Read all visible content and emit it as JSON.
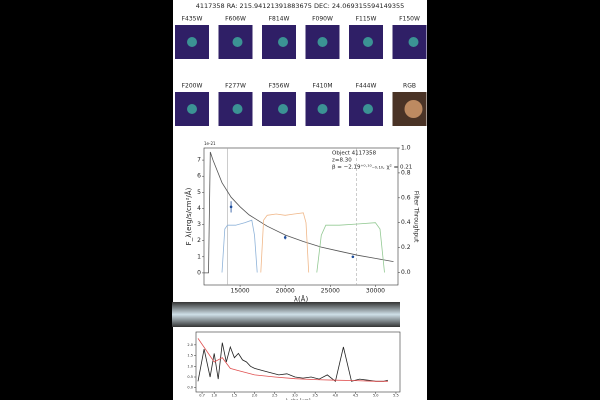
{
  "header": {
    "title": "4117358 RA: 215.94121391883675 DEC: 24.069315594149355"
  },
  "thumbnails": {
    "row1": [
      "F435W",
      "F606W",
      "F814W",
      "F090W",
      "F115W",
      "F150W"
    ],
    "row2": [
      "F200W",
      "F277W",
      "F356W",
      "F410M",
      "F444W",
      "RGB"
    ]
  },
  "chart_data": [
    {
      "type": "line",
      "ylabel": "F_λ(erg/s/cm²/Å)",
      "y2label": "Filter Throughput",
      "xlabel": "λ(Å)",
      "offset_label": "1e-21",
      "annotation": [
        "Object 4117358",
        "z=8.30",
        "β = −2.19⁺⁰·¹⁰₋₀.₁₀, χ² = 0.21"
      ],
      "xlim": [
        11000,
        32500
      ],
      "ylim": [
        -0.75,
        7.75
      ],
      "y2lim": [
        -0.1,
        1.0
      ],
      "xticks": [
        15000,
        20000,
        25000,
        30000
      ],
      "yticks": [
        0,
        1,
        2,
        3,
        4,
        5,
        6,
        7
      ],
      "y2ticks": [
        {
          "value": 0,
          "label": "0.0"
        },
        0.2,
        0.4,
        0.6,
        0.8,
        {
          "value": 1,
          "label": "1.0"
        }
      ],
      "markers": [
        13600,
        27900
      ],
      "series": [
        {
          "color": "#555555",
          "x": [
            11000,
            11500,
            11700,
            12000,
            13000,
            14000,
            15000,
            16000,
            18000,
            20000,
            22000,
            24000,
            26000,
            28000,
            30000,
            32000
          ],
          "values": [
            0,
            0,
            7.5,
            7.0,
            5.6,
            4.7,
            4.1,
            3.6,
            2.9,
            2.35,
            1.95,
            1.6,
            1.35,
            1.1,
            0.9,
            0.7
          ]
        },
        {
          "color": "#8fb3d9",
          "axis": "y2",
          "x": [
            13000,
            13300,
            13600,
            14500,
            15500,
            16300,
            16600,
            16900
          ],
          "values": [
            0,
            0.35,
            0.38,
            0.38,
            0.4,
            0.42,
            0.3,
            0
          ]
        },
        {
          "color": "#f0b88a",
          "axis": "y2",
          "x": [
            17300,
            17600,
            18000,
            19000,
            20000,
            21000,
            22000,
            22300,
            22600
          ],
          "values": [
            0,
            0.42,
            0.46,
            0.47,
            0.46,
            0.47,
            0.48,
            0.4,
            0
          ]
        },
        {
          "color": "#93c993",
          "axis": "y2",
          "x": [
            23500,
            24000,
            24500,
            26000,
            28000,
            30000,
            30500,
            31000
          ],
          "values": [
            0,
            0.3,
            0.38,
            0.38,
            0.39,
            0.4,
            0.35,
            0
          ]
        }
      ],
      "points": {
        "color": "#1f4e9c",
        "x": [
          14000,
          20000,
          27500
        ],
        "values": [
          4.1,
          2.2,
          1.0
        ],
        "errors": [
          0.35,
          0.12,
          0.06
        ]
      }
    },
    {
      "type": "line",
      "xlabel": "λ_obs [μm]",
      "xlim": [
        0.55,
        5.6
      ],
      "ylim": [
        -0.2,
        2.6
      ],
      "xticks": [
        0.7,
        {
          "value": 1,
          "label": "1.0"
        },
        1.5,
        {
          "value": 2,
          "label": "2.0"
        },
        2.5,
        {
          "value": 3,
          "label": "3.0"
        },
        3.5,
        {
          "value": 4,
          "label": "4.0"
        },
        4.5,
        {
          "value": 5,
          "label": "5.0"
        },
        5.5
      ],
      "yticks": [
        {
          "value": 0,
          "label": "0.0"
        },
        0.5,
        {
          "value": 1,
          "label": "1.0"
        },
        1.5,
        {
          "value": 2,
          "label": "2.0"
        }
      ],
      "series": [
        {
          "color": "#222222",
          "x": [
            0.6,
            0.75,
            0.9,
            1.0,
            1.1,
            1.2,
            1.3,
            1.4,
            1.5,
            1.6,
            1.7,
            1.8,
            1.9,
            2.0,
            2.2,
            2.4,
            2.6,
            2.8,
            3.0,
            3.2,
            3.4,
            3.6,
            3.8,
            4.0,
            4.2,
            4.4,
            4.6,
            4.8,
            5.0,
            5.2,
            5.3
          ],
          "values": [
            0.3,
            1.8,
            0.5,
            1.6,
            0.4,
            2.1,
            1.2,
            1.9,
            1.4,
            1.6,
            1.3,
            1.2,
            1.0,
            0.9,
            0.8,
            0.7,
            0.6,
            0.65,
            0.5,
            0.45,
            0.5,
            0.4,
            0.6,
            0.3,
            1.9,
            0.3,
            0.4,
            0.35,
            0.3,
            0.3,
            0.35
          ]
        },
        {
          "color": "#e05050",
          "x": [
            0.6,
            1.0,
            1.2,
            1.4,
            1.6,
            2.0,
            2.5,
            3.0,
            3.5,
            4.0,
            4.5,
            5.0,
            5.3
          ],
          "values": [
            2.3,
            1.2,
            1.4,
            0.9,
            0.8,
            0.6,
            0.5,
            0.42,
            0.38,
            0.35,
            0.33,
            0.3,
            0.3
          ]
        }
      ]
    }
  ]
}
